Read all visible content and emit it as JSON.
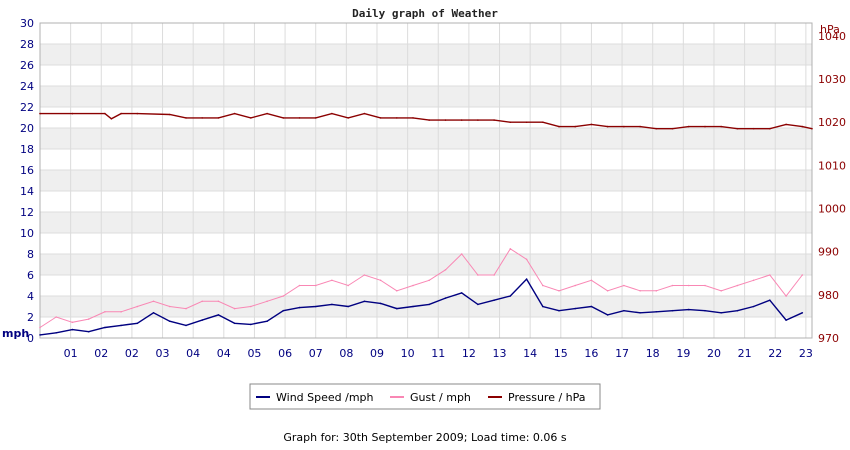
{
  "chart_data": {
    "type": "line",
    "title": "Daily graph of Weather",
    "x_tick_labels": [
      "01",
      "02",
      "02",
      "03",
      "04",
      "04",
      "05",
      "06",
      "07",
      "08",
      "09",
      "10",
      "11",
      "12",
      "13",
      "14",
      "15",
      "16",
      "17",
      "18",
      "19",
      "20",
      "21",
      "22",
      "23"
    ],
    "y_left": {
      "unit": "mph",
      "range": [
        0,
        30
      ],
      "ticks": [
        0,
        2,
        4,
        6,
        8,
        10,
        12,
        14,
        16,
        18,
        20,
        22,
        24,
        26,
        28,
        30
      ]
    },
    "y_right": {
      "unit": "hPa",
      "range": [
        970,
        1043
      ],
      "ticks": [
        970,
        980,
        990,
        1000,
        1010,
        1020,
        1030,
        1040
      ]
    },
    "grid": true,
    "legend_position": "bottom",
    "x_range_hours": [
      0,
      23.8
    ],
    "series": [
      {
        "name": "Wind Speed /mph",
        "axis": "left",
        "color": "#000080",
        "x": [
          0.0,
          0.5,
          1.0,
          1.5,
          2.0,
          2.5,
          3.0,
          3.5,
          4.0,
          4.5,
          5.0,
          5.5,
          6.0,
          6.5,
          7.0,
          7.5,
          8.0,
          8.5,
          9.0,
          9.5,
          10.0,
          10.5,
          11.0,
          11.5,
          12.0,
          12.5,
          13.0,
          13.5,
          14.0,
          14.5,
          15.0,
          15.5,
          16.0,
          16.5,
          17.0,
          17.5,
          18.0,
          18.5,
          19.0,
          19.5,
          20.0,
          20.5,
          21.0,
          21.5,
          22.0,
          22.5,
          23.0,
          23.5
        ],
        "values": [
          0.3,
          0.5,
          0.8,
          0.6,
          1.0,
          1.2,
          1.4,
          2.4,
          1.6,
          1.2,
          1.7,
          2.2,
          1.4,
          1.3,
          1.6,
          2.6,
          2.9,
          3.0,
          3.2,
          3.0,
          3.5,
          3.3,
          2.8,
          3.0,
          3.2,
          3.8,
          4.3,
          3.2,
          3.6,
          4.0,
          5.6,
          3.0,
          2.6,
          2.8,
          3.0,
          2.2,
          2.6,
          2.4,
          2.5,
          2.6,
          2.7,
          2.6,
          2.4,
          2.6,
          3.0,
          3.6,
          1.7,
          2.4
        ]
      },
      {
        "name": "Gust / mph",
        "axis": "left",
        "color": "#f987b4",
        "x": [
          0.0,
          0.5,
          1.0,
          1.5,
          2.0,
          2.5,
          3.0,
          3.5,
          4.0,
          4.5,
          5.0,
          5.5,
          6.0,
          6.5,
          7.0,
          7.5,
          8.0,
          8.5,
          9.0,
          9.5,
          10.0,
          10.5,
          11.0,
          11.5,
          12.0,
          12.5,
          13.0,
          13.5,
          14.0,
          14.5,
          15.0,
          15.5,
          16.0,
          16.5,
          17.0,
          17.5,
          18.0,
          18.5,
          19.0,
          19.5,
          20.0,
          20.5,
          21.0,
          21.5,
          22.0,
          22.5,
          23.0,
          23.5
        ],
        "values": [
          1.0,
          2.0,
          1.5,
          1.8,
          2.5,
          2.5,
          3.0,
          3.5,
          3.0,
          2.8,
          3.5,
          3.5,
          2.8,
          3.0,
          3.5,
          4.0,
          5.0,
          5.0,
          5.5,
          5.0,
          6.0,
          5.5,
          4.5,
          5.0,
          5.5,
          6.5,
          8.0,
          6.0,
          6.0,
          8.5,
          7.5,
          5.0,
          4.5,
          5.0,
          5.5,
          4.5,
          5.0,
          4.5,
          4.5,
          5.0,
          5.0,
          5.0,
          4.5,
          5.0,
          5.5,
          6.0,
          4.0,
          6.0
        ]
      },
      {
        "name": "Pressure / hPa",
        "axis": "right",
        "color": "#8b0000",
        "x": [
          0.0,
          1.0,
          2.0,
          2.2,
          2.5,
          3.0,
          4.0,
          4.5,
          5.0,
          5.5,
          6.0,
          6.5,
          7.0,
          7.5,
          8.0,
          8.5,
          9.0,
          9.5,
          10.0,
          10.5,
          11.0,
          11.5,
          12.0,
          12.5,
          13.0,
          13.5,
          14.0,
          14.5,
          15.0,
          15.5,
          16.0,
          16.5,
          17.0,
          17.5,
          18.0,
          18.5,
          19.0,
          19.5,
          20.0,
          20.5,
          21.0,
          21.5,
          22.0,
          22.5,
          23.0,
          23.5,
          23.8
        ],
        "values": [
          1022.0,
          1022.0,
          1022.0,
          1020.8,
          1022.0,
          1022.0,
          1021.8,
          1021.0,
          1021.0,
          1021.0,
          1022.0,
          1021.0,
          1022.0,
          1021.0,
          1021.0,
          1021.0,
          1022.0,
          1021.0,
          1022.0,
          1021.0,
          1021.0,
          1021.0,
          1020.5,
          1020.5,
          1020.5,
          1020.5,
          1020.5,
          1020.0,
          1020.0,
          1020.0,
          1019.0,
          1019.0,
          1019.5,
          1019.0,
          1019.0,
          1019.0,
          1018.5,
          1018.5,
          1019.0,
          1019.0,
          1019.0,
          1018.5,
          1018.5,
          1018.5,
          1019.5,
          1019.0,
          1018.5
        ]
      }
    ]
  },
  "footer_text": "Graph for: 30th September 2009; Load time: 0.06 s"
}
